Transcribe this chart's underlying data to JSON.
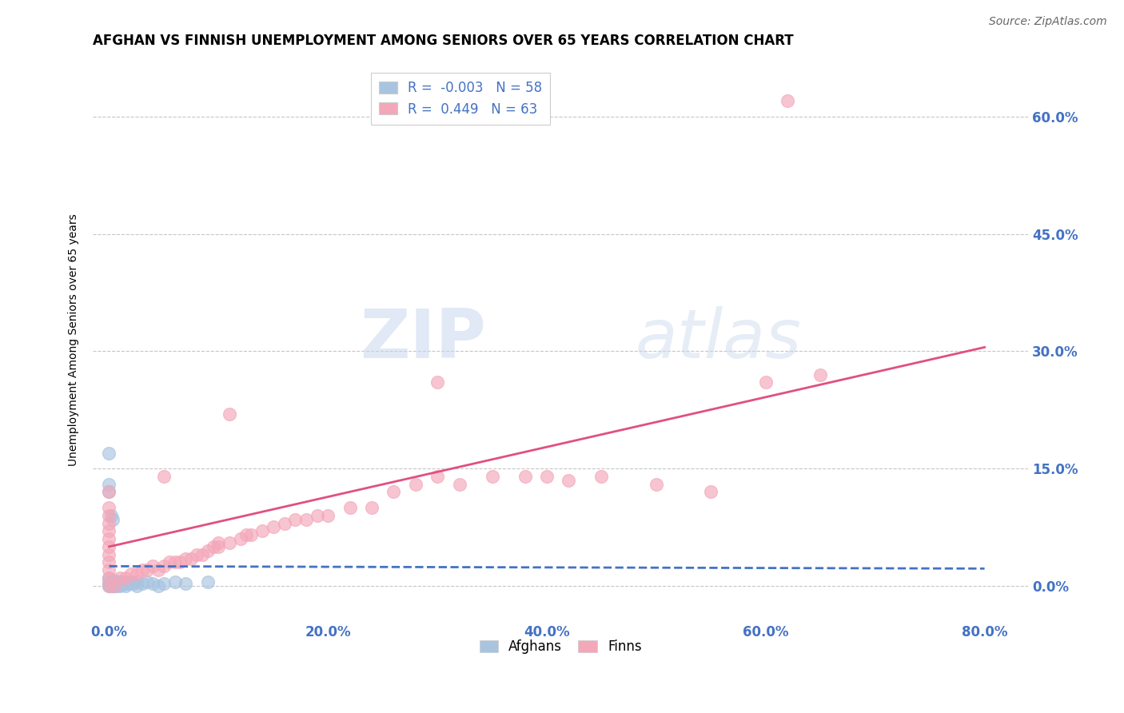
{
  "title": "AFGHAN VS FINNISH UNEMPLOYMENT AMONG SENIORS OVER 65 YEARS CORRELATION CHART",
  "source": "Source: ZipAtlas.com",
  "xlabel_ticks": [
    "0.0%",
    "20.0%",
    "40.0%",
    "60.0%",
    "80.0%"
  ],
  "xlabel_tick_vals": [
    0.0,
    0.2,
    0.4,
    0.6,
    0.8
  ],
  "ylabel": "Unemployment Among Seniors over 65 years",
  "ylabel_ticks": [
    "0.0%",
    "15.0%",
    "30.0%",
    "45.0%",
    "60.0%"
  ],
  "ylabel_tick_vals": [
    0.0,
    0.15,
    0.3,
    0.45,
    0.6
  ],
  "xlim": [
    -0.015,
    0.84
  ],
  "ylim": [
    -0.045,
    0.675
  ],
  "afghan_color": "#a8c4e0",
  "finn_color": "#f4a7b9",
  "afghan_line_color": "#4472c4",
  "finn_line_color": "#e05080",
  "afghan_R": -0.003,
  "afghan_N": 58,
  "finn_R": 0.449,
  "finn_N": 63,
  "legend_labels": [
    "Afghans",
    "Finns"
  ],
  "watermark_zip": "ZIP",
  "watermark_atlas": "atlas",
  "afghan_line_x": [
    0.0,
    0.8
  ],
  "afghan_line_y": [
    0.025,
    0.022
  ],
  "finn_line_x": [
    0.0,
    0.8
  ],
  "finn_line_y": [
    0.05,
    0.305
  ],
  "afghan_scatter": [
    [
      0.0,
      0.0
    ],
    [
      0.0,
      0.002
    ],
    [
      0.001,
      0.0
    ],
    [
      0.001,
      0.003
    ],
    [
      0.001,
      0.005
    ],
    [
      0.002,
      0.0
    ],
    [
      0.002,
      0.003
    ],
    [
      0.002,
      0.005
    ],
    [
      0.003,
      0.0
    ],
    [
      0.003,
      0.003
    ],
    [
      0.003,
      0.005
    ],
    [
      0.004,
      0.0
    ],
    [
      0.004,
      0.003
    ],
    [
      0.004,
      0.005
    ],
    [
      0.005,
      0.0
    ],
    [
      0.005,
      0.003
    ],
    [
      0.005,
      0.005
    ],
    [
      0.005,
      0.007
    ],
    [
      0.006,
      0.003
    ],
    [
      0.006,
      0.005
    ],
    [
      0.007,
      0.0
    ],
    [
      0.007,
      0.005
    ],
    [
      0.008,
      0.003
    ],
    [
      0.008,
      0.005
    ],
    [
      0.009,
      0.003
    ],
    [
      0.009,
      0.005
    ],
    [
      0.01,
      0.0
    ],
    [
      0.01,
      0.003
    ],
    [
      0.01,
      0.005
    ],
    [
      0.012,
      0.003
    ],
    [
      0.012,
      0.005
    ],
    [
      0.013,
      0.005
    ],
    [
      0.014,
      0.003
    ],
    [
      0.015,
      0.0
    ],
    [
      0.015,
      0.005
    ],
    [
      0.016,
      0.003
    ],
    [
      0.017,
      0.005
    ],
    [
      0.018,
      0.003
    ],
    [
      0.02,
      0.005
    ],
    [
      0.022,
      0.003
    ],
    [
      0.025,
      0.005
    ],
    [
      0.025,
      0.0
    ],
    [
      0.03,
      0.003
    ],
    [
      0.035,
      0.005
    ],
    [
      0.04,
      0.003
    ],
    [
      0.045,
      0.0
    ],
    [
      0.05,
      0.003
    ],
    [
      0.06,
      0.005
    ],
    [
      0.07,
      0.003
    ],
    [
      0.09,
      0.005
    ],
    [
      0.0,
      0.17
    ],
    [
      0.0,
      0.13
    ],
    [
      0.0,
      0.12
    ],
    [
      0.002,
      0.09
    ],
    [
      0.003,
      0.085
    ],
    [
      0.0,
      0.005
    ],
    [
      0.001,
      0.003
    ],
    [
      0.0,
      0.01
    ]
  ],
  "finn_scatter": [
    [
      0.62,
      0.62
    ],
    [
      0.0,
      0.0
    ],
    [
      0.0,
      0.01
    ],
    [
      0.0,
      0.02
    ],
    [
      0.0,
      0.03
    ],
    [
      0.0,
      0.04
    ],
    [
      0.0,
      0.05
    ],
    [
      0.0,
      0.06
    ],
    [
      0.0,
      0.07
    ],
    [
      0.0,
      0.08
    ],
    [
      0.0,
      0.09
    ],
    [
      0.0,
      0.1
    ],
    [
      0.0,
      0.12
    ],
    [
      0.005,
      0.0
    ],
    [
      0.01,
      0.01
    ],
    [
      0.015,
      0.01
    ],
    [
      0.02,
      0.015
    ],
    [
      0.025,
      0.015
    ],
    [
      0.03,
      0.02
    ],
    [
      0.035,
      0.02
    ],
    [
      0.04,
      0.025
    ],
    [
      0.045,
      0.02
    ],
    [
      0.05,
      0.025
    ],
    [
      0.05,
      0.14
    ],
    [
      0.055,
      0.03
    ],
    [
      0.06,
      0.03
    ],
    [
      0.065,
      0.03
    ],
    [
      0.07,
      0.035
    ],
    [
      0.075,
      0.035
    ],
    [
      0.08,
      0.04
    ],
    [
      0.085,
      0.04
    ],
    [
      0.09,
      0.045
    ],
    [
      0.095,
      0.05
    ],
    [
      0.1,
      0.05
    ],
    [
      0.1,
      0.055
    ],
    [
      0.11,
      0.055
    ],
    [
      0.11,
      0.22
    ],
    [
      0.12,
      0.06
    ],
    [
      0.125,
      0.065
    ],
    [
      0.13,
      0.065
    ],
    [
      0.14,
      0.07
    ],
    [
      0.15,
      0.075
    ],
    [
      0.16,
      0.08
    ],
    [
      0.17,
      0.085
    ],
    [
      0.18,
      0.085
    ],
    [
      0.19,
      0.09
    ],
    [
      0.2,
      0.09
    ],
    [
      0.22,
      0.1
    ],
    [
      0.24,
      0.1
    ],
    [
      0.26,
      0.12
    ],
    [
      0.28,
      0.13
    ],
    [
      0.3,
      0.14
    ],
    [
      0.3,
      0.26
    ],
    [
      0.32,
      0.13
    ],
    [
      0.35,
      0.14
    ],
    [
      0.38,
      0.14
    ],
    [
      0.4,
      0.14
    ],
    [
      0.42,
      0.135
    ],
    [
      0.45,
      0.14
    ],
    [
      0.5,
      0.13
    ],
    [
      0.55,
      0.12
    ],
    [
      0.6,
      0.26
    ],
    [
      0.65,
      0.27
    ]
  ],
  "background_color": "#ffffff",
  "grid_color": "#c0c0c0",
  "title_fontsize": 12,
  "tick_label_color": "#4472c4",
  "source_fontsize": 10,
  "source_color": "#666666"
}
